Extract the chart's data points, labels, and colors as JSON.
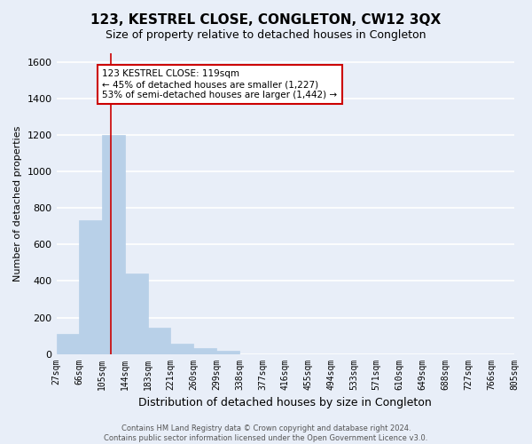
{
  "title": "123, KESTREL CLOSE, CONGLETON, CW12 3QX",
  "subtitle": "Size of property relative to detached houses in Congleton",
  "xlabel": "Distribution of detached houses by size in Congleton",
  "ylabel": "Number of detached properties",
  "bar_values": [
    110,
    735,
    1200,
    440,
    145,
    55,
    30,
    15,
    0,
    0,
    0,
    0,
    0,
    0,
    0,
    0,
    0,
    0,
    0,
    0
  ],
  "bin_labels": [
    "27sqm",
    "66sqm",
    "105sqm",
    "144sqm",
    "183sqm",
    "221sqm",
    "260sqm",
    "299sqm",
    "338sqm",
    "377sqm",
    "416sqm",
    "455sqm",
    "494sqm",
    "533sqm",
    "571sqm",
    "610sqm",
    "649sqm",
    "688sqm",
    "727sqm",
    "766sqm",
    "805sqm"
  ],
  "bar_color": "#b8d0e8",
  "bar_edge_color": "#b8d0e8",
  "property_line_color": "#cc0000",
  "annotation_text": "123 KESTREL CLOSE: 119sqm\n← 45% of detached houses are smaller (1,227)\n53% of semi-detached houses are larger (1,442) →",
  "annotation_box_color": "#ffffff",
  "annotation_box_edge": "#cc0000",
  "ylim": [
    0,
    1650
  ],
  "yticks": [
    0,
    200,
    400,
    600,
    800,
    1000,
    1200,
    1400,
    1600
  ],
  "background_color": "#e8eef8",
  "grid_color": "#ffffff",
  "footer_text": "Contains HM Land Registry data © Crown copyright and database right 2024.\nContains public sector information licensed under the Open Government Licence v3.0.",
  "bin_edges": [
    27,
    66,
    105,
    144,
    183,
    221,
    260,
    299,
    338,
    377,
    416,
    455,
    494,
    533,
    571,
    610,
    649,
    688,
    727,
    766,
    805
  ],
  "property_sqm": 119,
  "title_fontsize": 11,
  "subtitle_fontsize": 9,
  "ylabel_fontsize": 8,
  "xlabel_fontsize": 9,
  "tick_fontsize": 7,
  "annotation_fontsize": 7.5,
  "footer_fontsize": 6
}
